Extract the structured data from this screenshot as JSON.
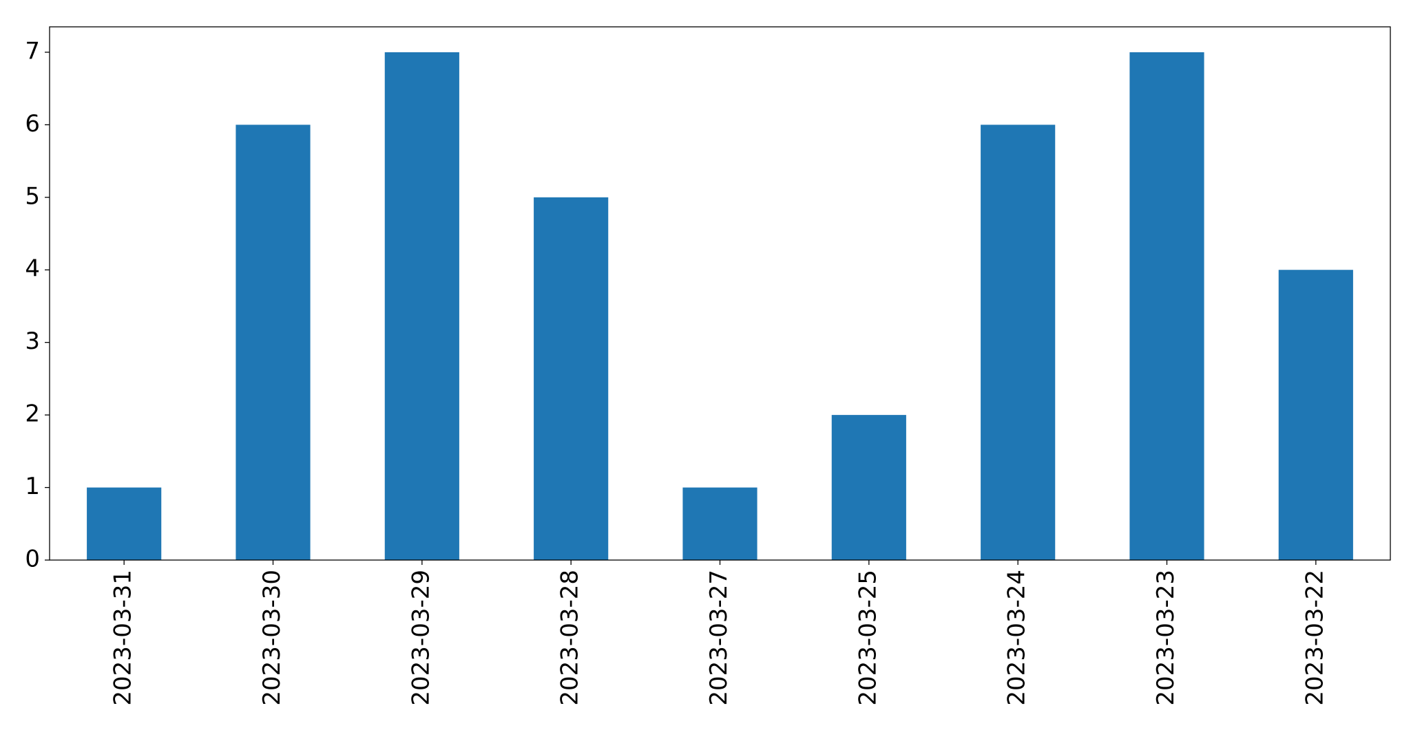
{
  "chart_data": {
    "type": "bar",
    "categories": [
      "2023-03-31",
      "2023-03-30",
      "2023-03-29",
      "2023-03-28",
      "2023-03-27",
      "2023-03-25",
      "2023-03-24",
      "2023-03-23",
      "2023-03-22"
    ],
    "values": [
      1,
      6,
      7,
      5,
      1,
      2,
      6,
      7,
      4
    ],
    "color": "#1f77b4",
    "ylim": [
      0,
      7.35
    ],
    "yticks": [
      0,
      1,
      2,
      3,
      4,
      5,
      6,
      7
    ],
    "grid": false
  }
}
